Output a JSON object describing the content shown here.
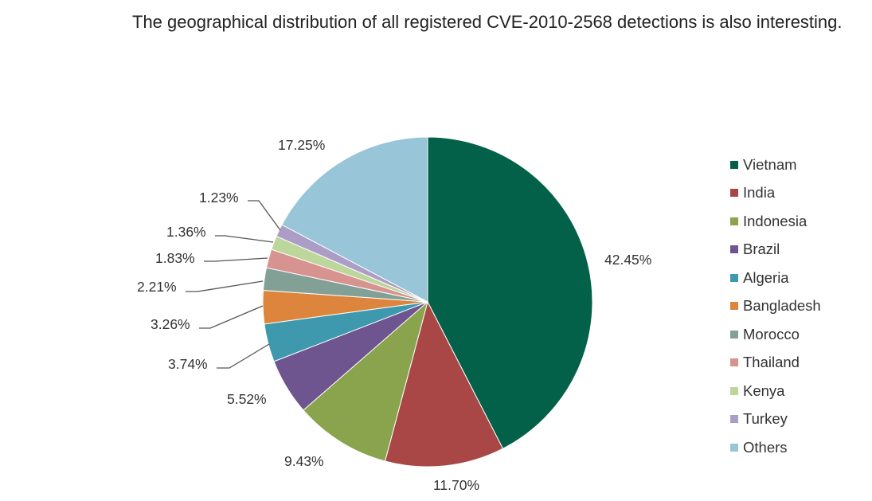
{
  "caption": "The geographical distribution of all registered CVE-2010-2568 detections is also interesting.",
  "chart_data": {
    "type": "pie",
    "title": "",
    "legend_position": "right",
    "slices": [
      {
        "name": "Vietnam",
        "value": 42.45,
        "label": "42.45%",
        "color": "#03614a"
      },
      {
        "name": "India",
        "value": 11.7,
        "label": "11.70%",
        "color": "#a84745"
      },
      {
        "name": "Indonesia",
        "value": 9.43,
        "label": "9.43%",
        "color": "#89a44d"
      },
      {
        "name": "Brazil",
        "value": 5.52,
        "label": "5.52%",
        "color": "#6e558f"
      },
      {
        "name": "Algeria",
        "value": 3.74,
        "label": "3.74%",
        "color": "#3e98ae"
      },
      {
        "name": "Bangladesh",
        "value": 3.26,
        "label": "3.26%",
        "color": "#dd853c"
      },
      {
        "name": "Morocco",
        "value": 2.21,
        "label": "2.21%",
        "color": "#83a096"
      },
      {
        "name": "Thailand",
        "value": 1.83,
        "label": "1.83%",
        "color": "#d6938f"
      },
      {
        "name": "Kenya",
        "value": 1.36,
        "label": "1.36%",
        "color": "#bcd69c"
      },
      {
        "name": "Turkey",
        "value": 1.23,
        "label": "1.23%",
        "color": "#ac9dc6"
      },
      {
        "name": "Others",
        "value": 17.25,
        "label": "17.25%",
        "color": "#98c5d8"
      }
    ]
  }
}
